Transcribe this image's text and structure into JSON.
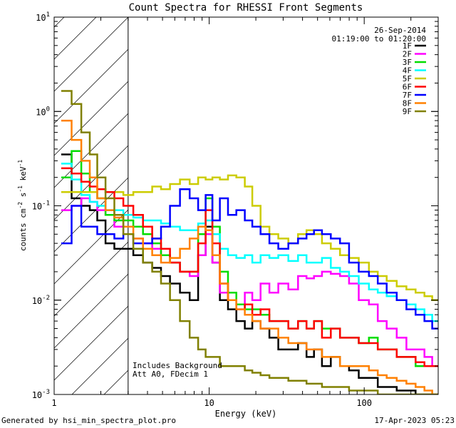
{
  "chart_data": {
    "type": "line",
    "title": "Count Spectra for RHESSI Front Segments",
    "xlabel": "Energy (keV)",
    "ylabel": "counts cm-2 s-1 keV-1",
    "ylabel_parts": {
      "base": "counts cm",
      "e1": "-2",
      "mid1": " s",
      "e2": "-1",
      "mid2": " keV",
      "e3": "-1"
    },
    "xscale": "log",
    "yscale": "log",
    "xlim": [
      1,
      300
    ],
    "ylim": [
      0.001,
      10
    ],
    "x_tick_labels": [
      {
        "value": 1,
        "label": "1"
      },
      {
        "value": 10,
        "label": "10"
      },
      {
        "value": 100,
        "label": "100"
      }
    ],
    "y_tick_labels": [
      {
        "value": 0.001,
        "base": "10",
        "exp": "-3"
      },
      {
        "value": 0.01,
        "base": "10",
        "exp": "-2"
      },
      {
        "value": 0.1,
        "base": "10",
        "exp": "-1"
      },
      {
        "value": 1,
        "base": "10",
        "exp": "0"
      },
      {
        "value": 10,
        "base": "10",
        "exp": "1"
      }
    ],
    "date": "26-Sep-2014",
    "time_range": "01:19:00 to 01:20:00",
    "annotations": [
      "Includes Background",
      "Att A0, FDecim 1"
    ],
    "hatched_region_keV": [
      1,
      3
    ],
    "legend_position": "top-right",
    "x": [
      1.2,
      1.4,
      1.6,
      1.8,
      2.0,
      2.3,
      2.6,
      3.0,
      3.5,
      4.0,
      4.6,
      5.2,
      6.0,
      7.0,
      8.0,
      9.0,
      10.0,
      11.0,
      12.5,
      14.0,
      16.0,
      18.0,
      20.0,
      23.0,
      26.0,
      30.0,
      35.0,
      40.0,
      45.0,
      50.0,
      57.0,
      65.0,
      75.0,
      85.0,
      100.0,
      115.0,
      130.0,
      150.0,
      175.0,
      200.0,
      230.0,
      260.0,
      290.0
    ],
    "series": [
      {
        "name": "1F",
        "color": "#000000",
        "values": [
          0.35,
          0.12,
          0.1,
          0.09,
          0.07,
          0.04,
          0.035,
          0.035,
          0.03,
          0.025,
          0.022,
          0.018,
          0.015,
          0.012,
          0.01,
          0.03,
          0.06,
          0.025,
          0.01,
          0.008,
          0.006,
          0.005,
          0.006,
          0.005,
          0.004,
          0.003,
          0.003,
          0.0035,
          0.0025,
          0.003,
          0.002,
          0.0025,
          0.002,
          0.0018,
          0.0015,
          0.0015,
          0.0012,
          0.0012,
          0.0011,
          0.0011,
          0.001,
          0.001,
          0.001
        ]
      },
      {
        "name": "2F",
        "color": "#ff00ff",
        "values": [
          0.09,
          0.1,
          0.12,
          0.11,
          0.09,
          0.08,
          0.06,
          0.05,
          0.045,
          0.04,
          0.035,
          0.03,
          0.025,
          0.02,
          0.018,
          0.03,
          0.05,
          0.025,
          0.012,
          0.01,
          0.009,
          0.012,
          0.01,
          0.015,
          0.012,
          0.015,
          0.013,
          0.018,
          0.017,
          0.018,
          0.02,
          0.019,
          0.018,
          0.015,
          0.01,
          0.009,
          0.006,
          0.005,
          0.004,
          0.003,
          0.003,
          0.0025,
          0.002
        ]
      },
      {
        "name": "3F",
        "color": "#00dd00",
        "values": [
          0.2,
          0.38,
          0.22,
          0.14,
          0.12,
          0.08,
          0.07,
          0.07,
          0.06,
          0.05,
          0.04,
          0.03,
          0.025,
          0.02,
          0.02,
          0.05,
          0.12,
          0.06,
          0.02,
          0.012,
          0.009,
          0.008,
          0.008,
          0.007,
          0.006,
          0.006,
          0.005,
          0.006,
          0.005,
          0.006,
          0.005,
          0.005,
          0.004,
          0.004,
          0.0035,
          0.004,
          0.003,
          0.003,
          0.0025,
          0.0025,
          0.002,
          0.002,
          0.002
        ]
      },
      {
        "name": "4F",
        "color": "#00ffff",
        "values": [
          0.28,
          0.19,
          0.13,
          0.11,
          0.1,
          0.09,
          0.09,
          0.08,
          0.075,
          0.07,
          0.07,
          0.065,
          0.06,
          0.055,
          0.055,
          0.065,
          0.07,
          0.05,
          0.035,
          0.03,
          0.028,
          0.03,
          0.025,
          0.03,
          0.028,
          0.03,
          0.026,
          0.03,
          0.025,
          0.025,
          0.028,
          0.022,
          0.02,
          0.018,
          0.015,
          0.013,
          0.012,
          0.011,
          0.01,
          0.009,
          0.008,
          0.007,
          0.006
        ]
      },
      {
        "name": "5F",
        "color": "#cccc00",
        "values": [
          0.14,
          0.14,
          0.14,
          0.14,
          0.15,
          0.14,
          0.14,
          0.13,
          0.14,
          0.14,
          0.16,
          0.15,
          0.17,
          0.19,
          0.17,
          0.2,
          0.19,
          0.2,
          0.19,
          0.21,
          0.2,
          0.16,
          0.1,
          0.06,
          0.05,
          0.045,
          0.04,
          0.05,
          0.055,
          0.05,
          0.04,
          0.035,
          0.03,
          0.028,
          0.025,
          0.02,
          0.018,
          0.016,
          0.014,
          0.013,
          0.012,
          0.011,
          0.01
        ]
      },
      {
        "name": "6F",
        "color": "#ff0000",
        "values": [
          0.25,
          0.22,
          0.18,
          0.16,
          0.15,
          0.14,
          0.12,
          0.1,
          0.08,
          0.06,
          0.045,
          0.035,
          0.025,
          0.02,
          0.02,
          0.04,
          0.09,
          0.04,
          0.015,
          0.01,
          0.008,
          0.009,
          0.007,
          0.008,
          0.006,
          0.006,
          0.005,
          0.006,
          0.005,
          0.006,
          0.004,
          0.005,
          0.004,
          0.004,
          0.0035,
          0.0035,
          0.003,
          0.003,
          0.0025,
          0.0025,
          0.0022,
          0.002,
          0.002
        ]
      },
      {
        "name": "7F",
        "color": "#0000ff",
        "values": [
          0.04,
          0.1,
          0.06,
          0.06,
          0.05,
          0.05,
          0.045,
          0.05,
          0.04,
          0.04,
          0.045,
          0.06,
          0.1,
          0.15,
          0.12,
          0.09,
          0.13,
          0.07,
          0.12,
          0.08,
          0.09,
          0.07,
          0.06,
          0.05,
          0.04,
          0.035,
          0.04,
          0.045,
          0.05,
          0.055,
          0.05,
          0.045,
          0.04,
          0.025,
          0.02,
          0.018,
          0.015,
          0.012,
          0.01,
          0.008,
          0.007,
          0.006,
          0.005
        ]
      },
      {
        "name": "8F",
        "color": "#ff8000",
        "values": [
          0.8,
          0.5,
          0.3,
          0.2,
          0.12,
          0.09,
          0.075,
          0.06,
          0.045,
          0.035,
          0.03,
          0.025,
          0.028,
          0.035,
          0.045,
          0.06,
          0.055,
          0.03,
          0.015,
          0.01,
          0.008,
          0.007,
          0.006,
          0.005,
          0.005,
          0.004,
          0.0035,
          0.0035,
          0.003,
          0.003,
          0.0025,
          0.0025,
          0.002,
          0.002,
          0.002,
          0.0018,
          0.0016,
          0.0015,
          0.0014,
          0.0013,
          0.0012,
          0.0011,
          0.001
        ]
      },
      {
        "name": "9F",
        "color": "#808000",
        "values": [
          1.65,
          1.2,
          0.6,
          0.35,
          0.2,
          0.12,
          0.08,
          0.05,
          0.035,
          0.025,
          0.02,
          0.015,
          0.01,
          0.006,
          0.004,
          0.003,
          0.0025,
          0.0025,
          0.002,
          0.002,
          0.002,
          0.0018,
          0.0017,
          0.0016,
          0.0015,
          0.0015,
          0.0014,
          0.0014,
          0.0013,
          0.0013,
          0.0012,
          0.0012,
          0.0012,
          0.0011,
          0.0011,
          0.0011,
          0.001,
          0.001,
          0.001,
          0.001,
          0.001,
          0.001,
          0.001
        ]
      }
    ]
  },
  "footer": {
    "generator": "Generated by hsi_min_spectra_plot.pro",
    "timestamp": "17-Apr-2023 05:23"
  }
}
